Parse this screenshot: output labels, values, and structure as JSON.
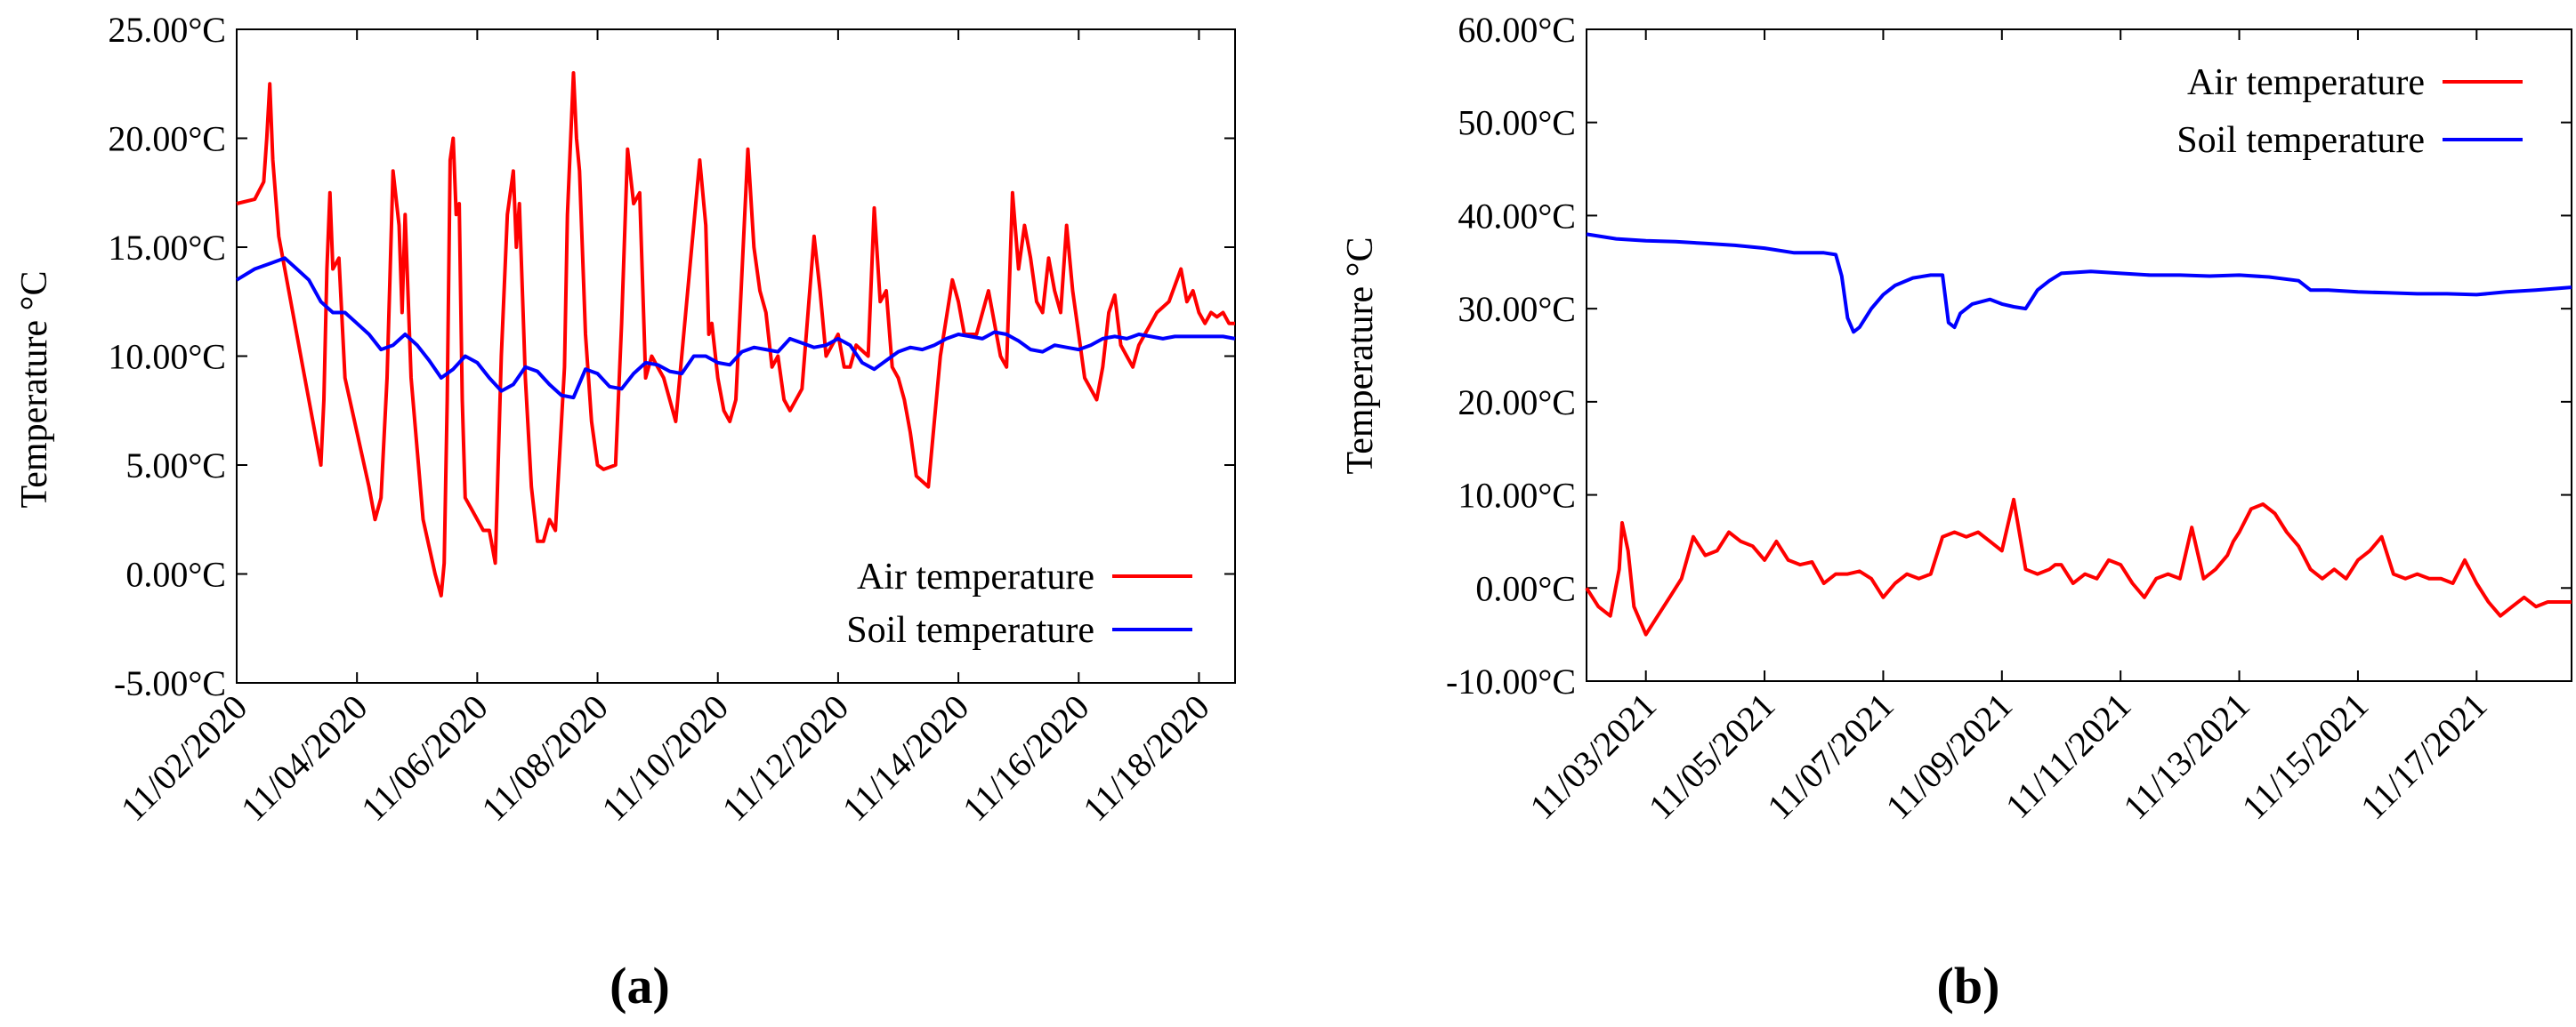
{
  "chart_data": [
    {
      "type": "line",
      "panel_label": "(a)",
      "ylabel": "Temperature °C",
      "xlabel": "",
      "ylim": [
        -5,
        25
      ],
      "y_ticks": [
        "-5.00°C",
        "0.00°C",
        "5.00°C",
        "10.00°C",
        "15.00°C",
        "20.00°C",
        "25.00°C"
      ],
      "xlim": [
        0,
        16.6
      ],
      "x_ticks": [
        "11/02/2020",
        "11/04/2020",
        "11/06/2020",
        "11/08/2020",
        "11/10/2020",
        "11/12/2020",
        "11/14/2020",
        "11/16/2020",
        "11/18/2020"
      ],
      "x_tick_positions": [
        0,
        2,
        4,
        6,
        8,
        10,
        12,
        14,
        16
      ],
      "legend_position": "bottom-right",
      "series": [
        {
          "name": "Air temperature",
          "color": "#ff0000",
          "x": [
            0,
            0.3,
            0.45,
            0.5,
            0.55,
            0.6,
            0.7,
            0.9,
            1.1,
            1.3,
            1.4,
            1.45,
            1.5,
            1.55,
            1.6,
            1.7,
            1.8,
            2.0,
            2.2,
            2.3,
            2.4,
            2.5,
            2.6,
            2.7,
            2.75,
            2.8,
            2.9,
            3.1,
            3.3,
            3.4,
            3.45,
            3.5,
            3.55,
            3.6,
            3.65,
            3.7,
            3.75,
            3.8,
            3.9,
            4.1,
            4.2,
            4.3,
            4.4,
            4.5,
            4.6,
            4.65,
            4.7,
            4.8,
            4.9,
            5.0,
            5.1,
            5.2,
            5.3,
            5.45,
            5.5,
            5.6,
            5.65,
            5.7,
            5.8,
            5.9,
            6.0,
            6.1,
            6.3,
            6.4,
            6.5,
            6.6,
            6.7,
            6.8,
            6.9,
            7.0,
            7.1,
            7.3,
            7.5,
            7.7,
            7.8,
            7.85,
            7.9,
            8.0,
            8.1,
            8.2,
            8.3,
            8.5,
            8.6,
            8.7,
            8.8,
            8.9,
            9.0,
            9.1,
            9.2,
            9.4,
            9.5,
            9.6,
            9.7,
            9.8,
            9.9,
            10.0,
            10.1,
            10.2,
            10.3,
            10.5,
            10.6,
            10.7,
            10.8,
            10.9,
            11.0,
            11.1,
            11.2,
            11.3,
            11.5,
            11.7,
            11.9,
            12.0,
            12.1,
            12.3,
            12.5,
            12.7,
            12.8,
            12.9,
            13.0,
            13.1,
            13.2,
            13.3,
            13.4,
            13.5,
            13.6,
            13.7,
            13.8,
            13.9,
            14.0,
            14.1,
            14.2,
            14.3,
            14.4,
            14.5,
            14.6,
            14.7,
            14.8,
            14.9,
            15.0,
            15.1,
            15.2,
            15.3,
            15.5,
            15.7,
            15.8,
            15.9,
            16.0,
            16.1,
            16.2,
            16.3,
            16.4,
            16.5,
            16.6
          ],
          "values": [
            17.0,
            17.2,
            18.0,
            20.0,
            22.5,
            19.0,
            15.5,
            12.5,
            9.5,
            6.5,
            5.0,
            8.0,
            14.0,
            17.5,
            14.0,
            14.5,
            9.0,
            6.5,
            4.0,
            2.5,
            3.5,
            9.0,
            18.5,
            16.0,
            12.0,
            16.5,
            9.0,
            2.5,
            0.0,
            -1.0,
            0.5,
            8.0,
            19.0,
            20.0,
            16.5,
            17.0,
            8.0,
            3.5,
            3.0,
            2.0,
            2.0,
            0.5,
            10.0,
            16.5,
            18.5,
            15.0,
            17.0,
            9.0,
            4.0,
            1.5,
            1.5,
            2.5,
            2.0,
            9.5,
            16.5,
            23.0,
            20.0,
            18.5,
            11.0,
            7.0,
            5.0,
            4.8,
            5.0,
            11.5,
            19.5,
            17.0,
            17.5,
            9.0,
            10.0,
            9.5,
            9.0,
            7.0,
            13.0,
            19.0,
            16.0,
            11.0,
            11.5,
            9.0,
            7.5,
            7.0,
            8.0,
            19.5,
            15.0,
            13.0,
            12.0,
            9.5,
            10.0,
            8.0,
            7.5,
            8.5,
            12.0,
            15.5,
            13.0,
            10.0,
            10.5,
            11.0,
            9.5,
            9.5,
            10.5,
            10.0,
            16.8,
            12.5,
            13.0,
            9.5,
            9.0,
            8.0,
            6.5,
            4.5,
            4.0,
            10.0,
            13.5,
            12.5,
            11.0,
            11.0,
            13.0,
            10.0,
            9.5,
            17.5,
            14.0,
            16.0,
            14.5,
            12.5,
            12.0,
            14.5,
            13.0,
            12.0,
            16.0,
            13.0,
            11.0,
            9.0,
            8.5,
            8.0,
            9.5,
            12.0,
            12.8,
            10.5,
            10.0,
            9.5,
            10.5,
            11.0,
            11.5,
            12.0,
            12.5,
            14.0,
            12.5,
            13.0,
            12.0,
            11.5,
            12.0,
            11.8,
            12.0,
            11.5,
            11.5
          ],
          "x_extra": []
        },
        {
          "name": "Soil temperature",
          "color": "#0000ff",
          "x": [
            0,
            0.3,
            0.6,
            0.8,
            1.0,
            1.2,
            1.4,
            1.6,
            1.8,
            2.0,
            2.2,
            2.4,
            2.6,
            2.8,
            3.0,
            3.2,
            3.4,
            3.6,
            3.8,
            4.0,
            4.2,
            4.4,
            4.6,
            4.8,
            5.0,
            5.2,
            5.4,
            5.6,
            5.8,
            6.0,
            6.2,
            6.4,
            6.6,
            6.8,
            7.0,
            7.2,
            7.4,
            7.6,
            7.8,
            8.0,
            8.2,
            8.4,
            8.6,
            8.8,
            9.0,
            9.2,
            9.4,
            9.6,
            9.8,
            10.0,
            10.2,
            10.4,
            10.6,
            10.8,
            11.0,
            11.2,
            11.4,
            11.6,
            11.8,
            12.0,
            12.2,
            12.4,
            12.6,
            12.8,
            13.0,
            13.2,
            13.4,
            13.6,
            13.8,
            14.0,
            14.2,
            14.4,
            14.6,
            14.8,
            15.0,
            15.2,
            15.4,
            15.6,
            15.8,
            16.0,
            16.2,
            16.4,
            16.6
          ],
          "values": [
            13.5,
            14.0,
            14.3,
            14.5,
            14.0,
            13.5,
            12.5,
            12.0,
            12.0,
            11.5,
            11.0,
            10.3,
            10.5,
            11.0,
            10.5,
            9.8,
            9.0,
            9.4,
            10.0,
            9.7,
            9.0,
            8.4,
            8.7,
            9.5,
            9.3,
            8.7,
            8.2,
            8.1,
            9.4,
            9.2,
            8.6,
            8.5,
            9.2,
            9.7,
            9.6,
            9.3,
            9.2,
            10.0,
            10.0,
            9.7,
            9.6,
            10.2,
            10.4,
            10.3,
            10.2,
            10.8,
            10.6,
            10.4,
            10.5,
            10.8,
            10.5,
            9.7,
            9.4,
            9.8,
            10.2,
            10.4,
            10.3,
            10.5,
            10.8,
            11.0,
            10.9,
            10.8,
            11.1,
            11.0,
            10.7,
            10.3,
            10.2,
            10.5,
            10.4,
            10.3,
            10.5,
            10.8,
            10.9,
            10.8,
            11.0,
            10.9,
            10.8,
            10.9,
            10.9,
            10.9,
            10.9,
            10.9,
            10.8
          ]
        }
      ]
    },
    {
      "type": "line",
      "panel_label": "(b)",
      "ylabel": "Temperature °C",
      "xlabel": "",
      "ylim": [
        -10,
        60
      ],
      "y_ticks": [
        "-10.00°C",
        "0.00°C",
        "10.00°C",
        "20.00°C",
        "30.00°C",
        "40.00°C",
        "50.00°C",
        "60.00°C"
      ],
      "xlim": [
        0,
        16.6
      ],
      "x_ticks": [
        "11/03/2021",
        "11/05/2021",
        "11/07/2021",
        "11/09/2021",
        "11/11/2021",
        "11/13/2021",
        "11/15/2021",
        "11/17/2021"
      ],
      "x_tick_positions": [
        1,
        3,
        5,
        7,
        9,
        11,
        13,
        15
      ],
      "legend_position": "top-right",
      "series": [
        {
          "name": "Air temperature",
          "color": "#ff0000",
          "x": [
            0,
            0.2,
            0.4,
            0.55,
            0.6,
            0.7,
            0.8,
            0.9,
            1.0,
            1.2,
            1.4,
            1.6,
            1.8,
            2.0,
            2.2,
            2.4,
            2.6,
            2.8,
            3.0,
            3.2,
            3.4,
            3.6,
            3.8,
            4.0,
            4.2,
            4.4,
            4.6,
            4.8,
            5.0,
            5.2,
            5.4,
            5.6,
            5.8,
            6.0,
            6.2,
            6.4,
            6.6,
            6.8,
            7.0,
            7.2,
            7.4,
            7.6,
            7.8,
            7.9,
            8.0,
            8.2,
            8.4,
            8.6,
            8.8,
            9.0,
            9.2,
            9.4,
            9.6,
            9.8,
            10.0,
            10.2,
            10.4,
            10.6,
            10.8,
            10.9,
            11.0,
            11.2,
            11.4,
            11.6,
            11.8,
            12.0,
            12.2,
            12.4,
            12.6,
            12.8,
            13.0,
            13.2,
            13.4,
            13.6,
            13.8,
            14.0,
            14.2,
            14.4,
            14.6,
            14.8,
            15.0,
            15.2,
            15.4,
            15.6,
            15.8,
            16.0,
            16.2,
            16.4,
            16.6
          ],
          "values": [
            0.0,
            -2.0,
            -3.0,
            2.0,
            7.0,
            4.0,
            -2.0,
            -3.5,
            -5.0,
            -3.0,
            -1.0,
            1.0,
            5.5,
            3.5,
            4.0,
            6.0,
            5.0,
            4.5,
            3.0,
            5.0,
            3.0,
            2.5,
            2.8,
            0.5,
            1.5,
            1.5,
            1.8,
            1.0,
            -1.0,
            0.5,
            1.5,
            1.0,
            1.5,
            5.5,
            6.0,
            5.5,
            6.0,
            5.0,
            4.0,
            9.5,
            2.0,
            1.5,
            2.0,
            2.5,
            2.5,
            0.5,
            1.5,
            1.0,
            3.0,
            2.5,
            0.5,
            -1.0,
            1.0,
            1.5,
            1.0,
            6.5,
            1.0,
            2.0,
            3.5,
            5.0,
            6.0,
            8.5,
            9.0,
            8.0,
            6.0,
            4.5,
            2.0,
            1.0,
            2.0,
            1.0,
            3.0,
            4.0,
            5.5,
            1.5,
            1.0,
            1.5,
            1.0,
            1.0,
            0.5,
            3.0,
            0.5,
            -1.5,
            -3.0,
            -2.0,
            -1.0,
            -2.0,
            -1.5,
            -1.5,
            -1.5
          ]
        },
        {
          "name": "Soil temperature",
          "color": "#0000ff",
          "x": [
            0,
            0.5,
            1.0,
            1.5,
            2.0,
            2.5,
            3.0,
            3.5,
            4.0,
            4.2,
            4.3,
            4.4,
            4.5,
            4.6,
            4.8,
            5.0,
            5.2,
            5.5,
            5.8,
            6.0,
            6.1,
            6.2,
            6.3,
            6.5,
            6.8,
            7.0,
            7.2,
            7.4,
            7.6,
            7.8,
            8.0,
            8.5,
            9.0,
            9.5,
            10.0,
            10.5,
            11.0,
            11.5,
            12.0,
            12.2,
            12.5,
            13.0,
            13.5,
            14.0,
            14.5,
            15.0,
            15.5,
            16.0,
            16.6
          ],
          "values": [
            38.0,
            37.5,
            37.3,
            37.2,
            37.0,
            36.8,
            36.5,
            36.0,
            36.0,
            35.8,
            33.5,
            29.0,
            27.5,
            28.0,
            30.0,
            31.5,
            32.5,
            33.3,
            33.6,
            33.6,
            28.5,
            28.0,
            29.5,
            30.5,
            31.0,
            30.5,
            30.2,
            30.0,
            32.0,
            33.0,
            33.8,
            34.0,
            33.8,
            33.6,
            33.6,
            33.5,
            33.6,
            33.4,
            33.0,
            32.0,
            32.0,
            31.8,
            31.7,
            31.6,
            31.6,
            31.5,
            31.8,
            32.0,
            32.3
          ]
        }
      ]
    }
  ]
}
